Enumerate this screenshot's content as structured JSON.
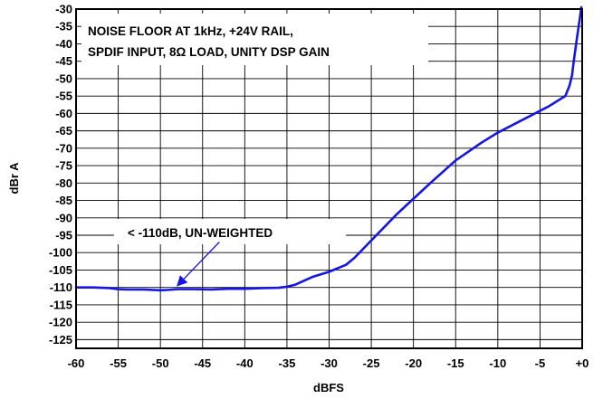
{
  "chart_data": {
    "type": "line",
    "title": "",
    "xlabel": "dBFS",
    "ylabel": "dBr A",
    "xlim": [
      -60,
      0
    ],
    "ylim": [
      -127.5,
      -30
    ],
    "grid": true,
    "x_ticks": [
      -60,
      -55,
      -50,
      -45,
      -40,
      -35,
      -30,
      -25,
      -20,
      -15,
      -10,
      -5,
      0
    ],
    "x_tick_labels": [
      "-60",
      "-55",
      "-50",
      "-45",
      "-40",
      "-35",
      "-30",
      "-25",
      "-20",
      "-15",
      "-10",
      "-5",
      "+0"
    ],
    "y_ticks": [
      -30,
      -35,
      -40,
      -45,
      -50,
      -55,
      -60,
      -65,
      -70,
      -75,
      -80,
      -85,
      -90,
      -95,
      -100,
      -105,
      -110,
      -115,
      -120,
      -125
    ],
    "y_tick_labels": [
      "-30",
      "-35",
      "-40",
      "-45",
      "-50",
      "-55",
      "-60",
      "-65",
      "-70",
      "-75",
      "-80",
      "-85",
      "-90",
      "-95",
      "-100",
      "-105",
      "-110",
      "-115",
      "-120",
      "-125"
    ],
    "series": [
      {
        "color": "#1515e6",
        "x": [
          -60,
          -58,
          -56,
          -55,
          -54,
          -52,
          -50,
          -49,
          -48,
          -46,
          -44,
          -42,
          -40,
          -38,
          -36,
          -35,
          -34,
          -32,
          -30,
          -28,
          -27,
          -26,
          -25,
          -22,
          -20,
          -18,
          -15,
          -12,
          -10,
          -8,
          -6,
          -4,
          -2,
          -1.5,
          -1.2,
          -1,
          -0.6,
          -0.3,
          -0.1
        ],
        "y": [
          -110,
          -110,
          -110.2,
          -110.5,
          -110.6,
          -110.6,
          -110.8,
          -110.7,
          -110.5,
          -110.5,
          -110.6,
          -110.4,
          -110.4,
          -110.2,
          -110.1,
          -109.8,
          -109.2,
          -107,
          -105.5,
          -103.5,
          -101.5,
          -99,
          -96.5,
          -89,
          -84.5,
          -80,
          -73.5,
          -68.5,
          -65.5,
          -63,
          -60.5,
          -58,
          -55,
          -52,
          -49,
          -45,
          -38,
          -33,
          -29.5
        ]
      }
    ],
    "annotations": [
      {
        "text_lines": [
          "NOISE FLOOR AT 1kHz, +24V RAIL,",
          "SPDIF INPUT, 8Ω LOAD, UNITY DSP GAIN"
        ]
      },
      {
        "text": "< -110dB, UN-WEIGHTED",
        "arrow_from": [
          -43,
          -99
        ],
        "arrow_to": [
          -48,
          -109.5
        ]
      }
    ]
  },
  "colors": {
    "line": "#1515e6",
    "grid": "#000000",
    "background": "#ffffff"
  }
}
